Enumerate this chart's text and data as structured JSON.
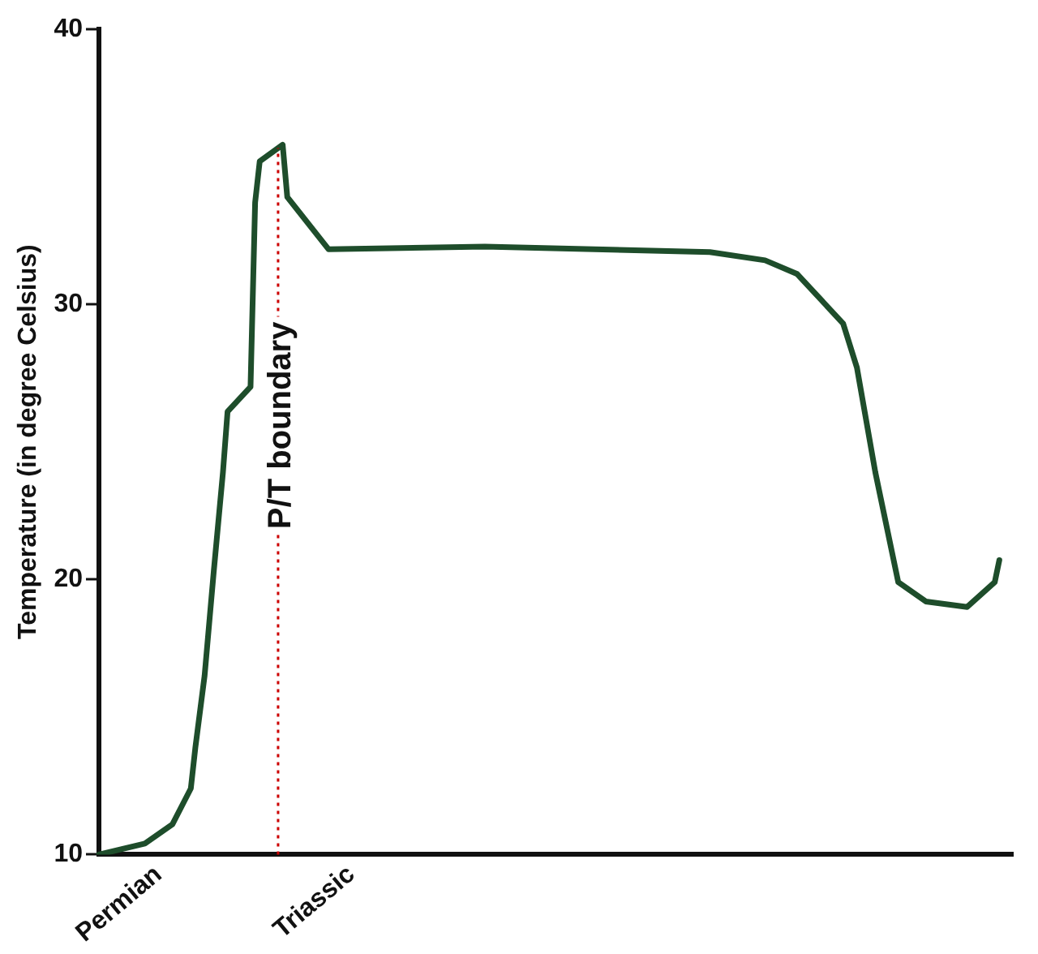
{
  "chart_data": {
    "type": "line",
    "ylabel": "Temperature (in degree Celsius)",
    "categories": [
      null,
      null,
      null,
      null,
      null,
      null,
      null,
      null,
      null,
      null,
      null,
      null,
      null,
      "Permian",
      null,
      null,
      null,
      null,
      null,
      null,
      null,
      null,
      null,
      null,
      null,
      null,
      null,
      null,
      null,
      null,
      null,
      null,
      null,
      null,
      null,
      null,
      null,
      null,
      null,
      "P/T boundary",
      null,
      null,
      null,
      null,
      null,
      null,
      null,
      null,
      null,
      null,
      null,
      null,
      null,
      null,
      null,
      "Triassic",
      null,
      null,
      null,
      null,
      null,
      null,
      null,
      null,
      null,
      null,
      null,
      null,
      null,
      null,
      null,
      null,
      null,
      null,
      null,
      null,
      null,
      null,
      null,
      null,
      null,
      null,
      null,
      null,
      null,
      null,
      null,
      null,
      null,
      null,
      null,
      null,
      null,
      null,
      null,
      null,
      null,
      null,
      null,
      null,
      null,
      null,
      null,
      null,
      null,
      null,
      null,
      null,
      null,
      null,
      null,
      null,
      null,
      null,
      null,
      null,
      null,
      null,
      null,
      null,
      null,
      null,
      null,
      null,
      null,
      null,
      null,
      null,
      null,
      null,
      null,
      null,
      null,
      null,
      null,
      null,
      null,
      null,
      null,
      null,
      null,
      null,
      null,
      null,
      null,
      null,
      null,
      null,
      null,
      null,
      null,
      null,
      null,
      null,
      null,
      null,
      null,
      null,
      null,
      null,
      null,
      null,
      null,
      null,
      null,
      null,
      null,
      null,
      null,
      null,
      null,
      null,
      null,
      null,
      null,
      null,
      null,
      null,
      null,
      null,
      null,
      null,
      null,
      null,
      null,
      null,
      null,
      null,
      null,
      null,
      null,
      null,
      null,
      null,
      null,
      null,
      null,
      null,
      null,
      null
    ],
    "ylim": [
      10,
      40
    ],
    "yticks": [
      10,
      20,
      30,
      40
    ],
    "series": [
      {
        "color": "#1e4d2b",
        "values": [
          10.0,
          null,
          null,
          null,
          null,
          null,
          null,
          null,
          null,
          null,
          10.4,
          null,
          null,
          null,
          null,
          null,
          11.1,
          null,
          null,
          null,
          12.4,
          13.9,
          null,
          16.5,
          null,
          20.3,
          null,
          23.9,
          26.1,
          null,
          null,
          null,
          null,
          27.0,
          33.7,
          35.2,
          null,
          null,
          null,
          null,
          35.8,
          33.9,
          null,
          null,
          null,
          null,
          null,
          null,
          null,
          null,
          32.0,
          null,
          null,
          null,
          null,
          null,
          null,
          null,
          null,
          null,
          null,
          null,
          null,
          null,
          null,
          null,
          null,
          null,
          null,
          null,
          null,
          null,
          null,
          null,
          null,
          null,
          null,
          null,
          null,
          null,
          null,
          null,
          null,
          null,
          32.1,
          null,
          null,
          null,
          null,
          null,
          null,
          null,
          null,
          null,
          null,
          null,
          null,
          null,
          null,
          null,
          null,
          null,
          null,
          null,
          null,
          null,
          null,
          null,
          null,
          null,
          null,
          null,
          null,
          null,
          null,
          null,
          null,
          null,
          null,
          null,
          null,
          null,
          null,
          null,
          null,
          null,
          null,
          null,
          null,
          null,
          null,
          null,
          null,
          31.9,
          null,
          null,
          null,
          null,
          null,
          null,
          null,
          null,
          null,
          null,
          null,
          31.6,
          null,
          null,
          null,
          null,
          null,
          null,
          31.1,
          null,
          null,
          null,
          null,
          null,
          null,
          null,
          null,
          null,
          29.3,
          null,
          null,
          27.7,
          null,
          null,
          null,
          23.9,
          null,
          null,
          null,
          null,
          19.9,
          null,
          null,
          null,
          null,
          null,
          19.2,
          null,
          null,
          null,
          null,
          null,
          null,
          null,
          null,
          19.0,
          null,
          null,
          null,
          null,
          null,
          19.9,
          20.7,
          null,
          null,
          null
        ]
      }
    ],
    "ref_lines": [
      {
        "axis": "x",
        "value": "P/T boundary",
        "color": "#cc0000",
        "line_style": "dotted"
      }
    ],
    "grid": false,
    "legend": false,
    "marker": "none",
    "line_style": "solid"
  }
}
